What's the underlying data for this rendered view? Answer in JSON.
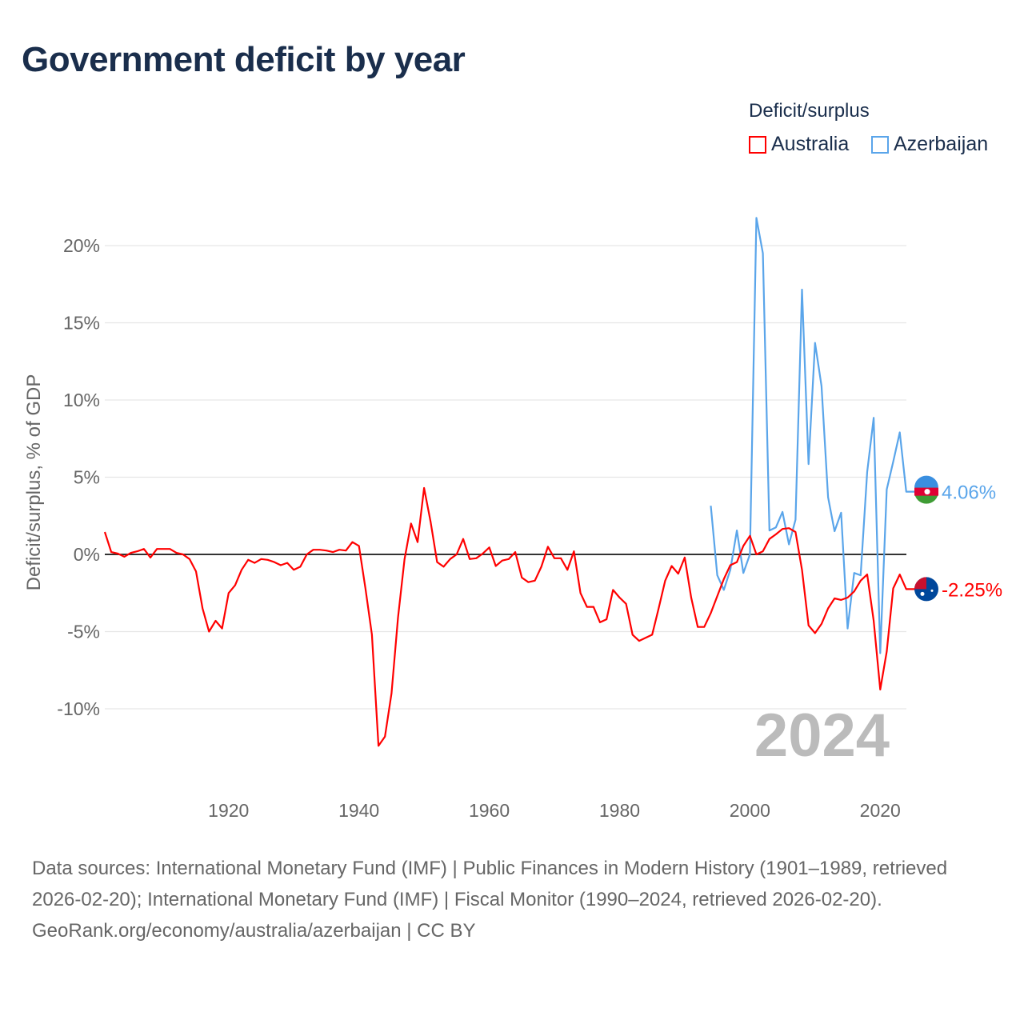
{
  "title": "Government deficit by year",
  "legend": {
    "title": "Deficit/surplus",
    "items": [
      {
        "name": "Australia",
        "color": "#ff0000"
      },
      {
        "name": "Azerbaijan",
        "color": "#5aa5ea"
      }
    ]
  },
  "footer": {
    "sources": "Data sources: International Monetary Fund (IMF) | Public Finances in Modern History (1901–1989, retrieved 2026-02-20); International Monetary Fund (IMF) | Fiscal Monitor (1990–2024, retrieved 2026-02-20).",
    "credit": "GeoRank.org/economy/australia/azerbaijan | CC BY"
  },
  "chart_data": {
    "type": "line",
    "title": "Government deficit by year",
    "ylabel": "Deficit/surplus, % of GDP",
    "xlabel": "",
    "xlim": [
      1901,
      2024
    ],
    "ylim": [
      -13.5,
      23
    ],
    "yticks": [
      20,
      15,
      10,
      5,
      0,
      -5,
      -10
    ],
    "ytick_labels": [
      "20%",
      "15%",
      "10%",
      "5%",
      "0%",
      "-5%",
      "-10%"
    ],
    "xticks": [
      1920,
      1940,
      1960,
      1980,
      2000,
      2020
    ],
    "xtick_labels": [
      "1920",
      "1940",
      "1960",
      "1980",
      "2000",
      "2020"
    ],
    "year_watermark": "2024",
    "grid": true,
    "legend_position": "top-right",
    "series": [
      {
        "name": "Australia",
        "color": "#ff0000",
        "start_year": 1901,
        "end_label": "-2.25%",
        "flag": "australia-flag",
        "values": [
          1.45,
          0.15,
          0.05,
          -0.15,
          0.1,
          0.2,
          0.35,
          -0.2,
          0.35,
          0.35,
          0.35,
          0.1,
          0,
          -0.3,
          -1.1,
          -3.5,
          -5.0,
          -4.3,
          -4.8,
          -2.5,
          -2.0,
          -1.0,
          -0.35,
          -0.55,
          -0.3,
          -0.35,
          -0.5,
          -0.7,
          -0.55,
          -1.0,
          -0.8,
          0,
          0.3,
          0.3,
          0.25,
          0.15,
          0.3,
          0.25,
          0.8,
          0.55,
          -2.2,
          -5.2,
          -12.4,
          -11.8,
          -9.0,
          -4.1,
          -0.3,
          2.0,
          0.8,
          4.3,
          2.1,
          -0.5,
          -0.8,
          -0.3,
          0,
          1.0,
          -0.3,
          -0.25,
          0.05,
          0.45,
          -0.75,
          -0.4,
          -0.3,
          0.15,
          -1.5,
          -1.8,
          -1.7,
          -0.8,
          0.5,
          -0.25,
          -0.25,
          -1.0,
          0.2,
          -2.5,
          -3.4,
          -3.4,
          -4.4,
          -4.2,
          -2.3,
          -2.8,
          -3.2,
          -5.2,
          -5.6,
          -5.4,
          -5.2,
          -3.5,
          -1.7,
          -0.75,
          -1.25,
          -0.2,
          -2.8,
          -4.7,
          -4.7,
          -3.8,
          -2.7,
          -1.6,
          -0.7,
          -0.5,
          0.55,
          1.2,
          0,
          0.2,
          1.0,
          1.3,
          1.65,
          1.7,
          1.45,
          -1.0,
          -4.6,
          -5.1,
          -4.5,
          -3.5,
          -2.85,
          -2.95,
          -2.8,
          -2.4,
          -1.7,
          -1.3,
          -4.3,
          -8.75,
          -6.3,
          -2.2,
          -1.3,
          -2.25
        ]
      },
      {
        "name": "Azerbaijan",
        "color": "#5aa5ea",
        "start_year": 1994,
        "end_label": "4.06%",
        "flag": "azerbaijan-flag",
        "values": [
          3.15,
          -1.35,
          -2.3,
          -1.0,
          1.55,
          -1.2,
          0,
          21.8,
          19.5,
          1.55,
          1.75,
          2.75,
          0.65,
          2.25,
          17.15,
          5.85,
          13.7,
          10.9,
          3.7,
          1.5,
          2.7,
          -4.8,
          -1.2,
          -1.35,
          5.35,
          8.85,
          -6.4,
          4.2,
          6.0,
          7.9,
          4.06
        ]
      }
    ]
  }
}
